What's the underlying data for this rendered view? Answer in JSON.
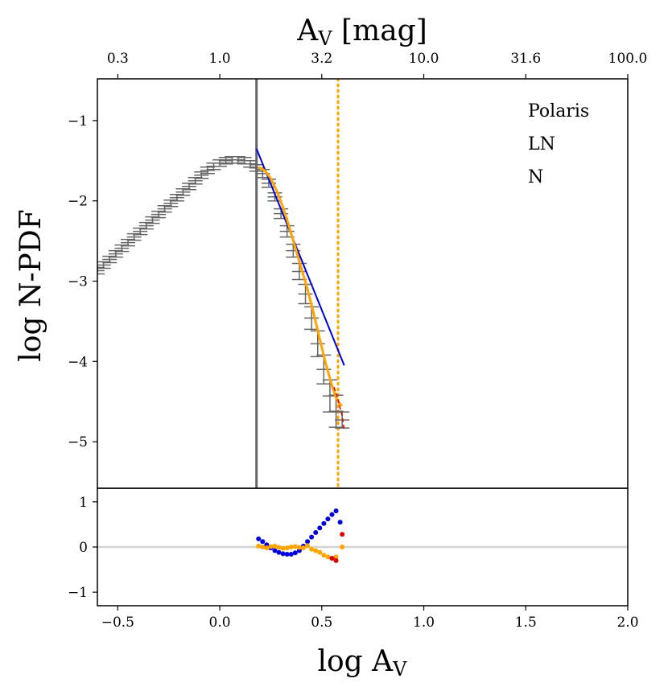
{
  "chart_data": {
    "type": "scatter",
    "title": "",
    "xlabel": "log A",
    "xlabel_sub": "V",
    "top_xlabel": "A",
    "top_xlabel_sub": "V",
    "top_xlabel_unit": " [mag]",
    "ylabel": "log N-PDF",
    "xlim": [
      -0.6,
      2.0
    ],
    "main_ylim": [
      -5.58,
      -0.48
    ],
    "resid_ylim": [
      -1.3,
      1.3
    ],
    "x_ticks": [
      {
        "value": -0.5,
        "label": "−0.5"
      },
      {
        "value": 0.0,
        "label": "0.0"
      },
      {
        "value": 0.5,
        "label": "0.5"
      },
      {
        "value": 1.0,
        "label": "1.0"
      },
      {
        "value": 1.5,
        "label": "1.5"
      },
      {
        "value": 2.0,
        "label": "2.0"
      }
    ],
    "top_ticks": [
      {
        "value": -0.5,
        "label": "0.3"
      },
      {
        "value": 0.0,
        "label": "1.0"
      },
      {
        "value": 0.5,
        "label": "3.2"
      },
      {
        "value": 1.0,
        "label": "10.0"
      },
      {
        "value": 1.5,
        "label": "31.6"
      },
      {
        "value": 2.0,
        "label": "100.0"
      }
    ],
    "main_y_ticks": [
      {
        "value": -1,
        "label": "−1"
      },
      {
        "value": -2,
        "label": "−2"
      },
      {
        "value": -3,
        "label": "−3"
      },
      {
        "value": -4,
        "label": "−4"
      },
      {
        "value": -5,
        "label": "−5"
      }
    ],
    "resid_y_ticks": [
      {
        "value": 1,
        "label": "1"
      },
      {
        "value": 0,
        "label": "0"
      },
      {
        "value": -1,
        "label": "−1"
      }
    ],
    "legend": [
      "Polaris",
      "LN",
      "N"
    ],
    "legend_position": "top-right",
    "vline_completeness": 0.18,
    "vline_peak": 0.58,
    "colors": {
      "pdf": "#666666",
      "ln_fit": "#0000dd",
      "n_fit": "#ffa500",
      "red_fit": "#dd0000",
      "vline_solid": "#666666",
      "vline_dotted": "#ffa500",
      "zero_line": "#d3d3d3"
    },
    "series": [
      {
        "name": "N-PDF",
        "x": [
          -0.6,
          -0.57,
          -0.54,
          -0.51,
          -0.48,
          -0.45,
          -0.42,
          -0.39,
          -0.36,
          -0.33,
          -0.3,
          -0.27,
          -0.24,
          -0.21,
          -0.18,
          -0.15,
          -0.12,
          -0.09,
          -0.06,
          -0.03,
          0.0,
          0.03,
          0.06,
          0.09,
          0.12,
          0.15,
          0.18,
          0.21,
          0.24,
          0.27,
          0.3,
          0.33,
          0.36,
          0.39,
          0.42,
          0.45,
          0.48,
          0.51,
          0.54,
          0.57,
          0.6
        ],
        "y": [
          -2.87,
          -2.8,
          -2.73,
          -2.66,
          -2.59,
          -2.52,
          -2.45,
          -2.38,
          -2.31,
          -2.24,
          -2.17,
          -2.1,
          -2.03,
          -1.96,
          -1.89,
          -1.82,
          -1.75,
          -1.68,
          -1.62,
          -1.57,
          -1.53,
          -1.5,
          -1.49,
          -1.49,
          -1.5,
          -1.54,
          -1.59,
          -1.66,
          -1.78,
          -1.95,
          -2.16,
          -2.38,
          -2.62,
          -2.88,
          -3.16,
          -3.46,
          -3.78,
          -4.1,
          -4.43,
          -4.62,
          -4.73
        ],
        "err": [
          0.04,
          0.04,
          0.04,
          0.04,
          0.04,
          0.04,
          0.04,
          0.04,
          0.04,
          0.04,
          0.04,
          0.04,
          0.04,
          0.04,
          0.04,
          0.04,
          0.04,
          0.04,
          0.04,
          0.04,
          0.04,
          0.04,
          0.04,
          0.04,
          0.04,
          0.04,
          0.04,
          0.05,
          0.05,
          0.05,
          0.06,
          0.07,
          0.08,
          0.1,
          0.12,
          0.14,
          0.16,
          0.18,
          0.2,
          0.2,
          0.1
        ]
      },
      {
        "name": "LN",
        "x": [
          0.18,
          0.61
        ],
        "y": [
          -1.35,
          -4.05
        ]
      },
      {
        "name": "N",
        "x": [
          0.19,
          0.22,
          0.25,
          0.28,
          0.31,
          0.34,
          0.37,
          0.4,
          0.43,
          0.46,
          0.49,
          0.52,
          0.55,
          0.57,
          0.585,
          0.6
        ],
        "y": [
          -1.58,
          -1.62,
          -1.72,
          -1.88,
          -2.08,
          -2.32,
          -2.58,
          -2.84,
          -3.1,
          -3.4,
          -3.72,
          -4.03,
          -4.3,
          -4.45,
          -4.52,
          -4.55
        ]
      },
      {
        "name": "N-dashed",
        "x": [
          0.56,
          0.58,
          0.6,
          0.61
        ],
        "y": [
          -4.32,
          -4.48,
          -4.68,
          -4.85
        ]
      }
    ],
    "residuals": [
      {
        "name": "LN",
        "x": [
          0.19,
          0.21,
          0.23,
          0.25,
          0.27,
          0.29,
          0.31,
          0.33,
          0.35,
          0.37,
          0.39,
          0.41,
          0.43,
          0.45,
          0.47,
          0.49,
          0.51,
          0.53,
          0.55,
          0.57,
          0.59
        ],
        "y": [
          0.18,
          0.12,
          0.05,
          -0.02,
          -0.08,
          -0.12,
          -0.15,
          -0.16,
          -0.16,
          -0.13,
          -0.08,
          0.02,
          0.12,
          0.22,
          0.32,
          0.42,
          0.52,
          0.62,
          0.72,
          0.8,
          0.55
        ]
      },
      {
        "name": "N",
        "x": [
          0.19,
          0.21,
          0.23,
          0.25,
          0.27,
          0.29,
          0.31,
          0.33,
          0.35,
          0.37,
          0.39,
          0.41,
          0.43,
          0.45,
          0.47,
          0.49,
          0.51,
          0.53,
          0.55,
          0.57,
          0.6
        ],
        "y": [
          0.02,
          0.0,
          -0.02,
          0.01,
          0.02,
          -0.01,
          -0.03,
          -0.02,
          0.0,
          0.01,
          -0.01,
          -0.02,
          0.03,
          -0.05,
          -0.08,
          -0.12,
          -0.18,
          -0.22,
          -0.25,
          -0.22,
          0.0
        ]
      },
      {
        "name": "red",
        "x": [
          0.55,
          0.57,
          0.6
        ],
        "y": [
          -0.25,
          -0.3,
          0.28
        ]
      }
    ]
  }
}
